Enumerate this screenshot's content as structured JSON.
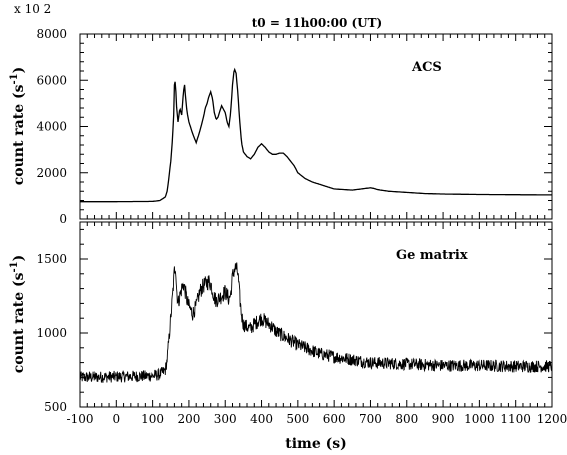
{
  "chart_data": [
    {
      "type": "line",
      "subplot": "top",
      "title": "t0 = 11h00:00 (UT)",
      "annotation": "ACS",
      "scale_label": "x 10 2",
      "ylabel": "count rate (s",
      "ylabel_sup": "-1",
      "ylabel_close": ")",
      "xlim": [
        -100,
        1200
      ],
      "ylim": [
        0,
        8000
      ],
      "yticks": [
        0,
        2000,
        4000,
        6000,
        8000
      ],
      "ytick_labels": [
        "0",
        "2000",
        "4000",
        "6000",
        "8000"
      ],
      "series": [
        {
          "x": [
            -100,
            0,
            100,
            120,
            135,
            140,
            145,
            150,
            155,
            158,
            160,
            163,
            165,
            170,
            175,
            180,
            185,
            188,
            190,
            195,
            200,
            210,
            220,
            230,
            240,
            245,
            250,
            255,
            260,
            265,
            270,
            275,
            280,
            290,
            300,
            305,
            310,
            315,
            320,
            325,
            330,
            335,
            340,
            345,
            350,
            360,
            370,
            380,
            390,
            400,
            410,
            420,
            430,
            440,
            450,
            460,
            470,
            480,
            490,
            500,
            520,
            540,
            560,
            580,
            600,
            650,
            700,
            710,
            720,
            750,
            800,
            850,
            900,
            1000,
            1100,
            1200
          ],
          "y": [
            750,
            750,
            760,
            800,
            950,
            1200,
            1800,
            2500,
            3500,
            4500,
            5800,
            6000,
            5000,
            4200,
            4800,
            4500,
            5500,
            5800,
            5400,
            4600,
            4200,
            3700,
            3300,
            3800,
            4400,
            4800,
            5000,
            5300,
            5500,
            5200,
            4600,
            4300,
            4400,
            4900,
            4600,
            4200,
            4000,
            4600,
            5800,
            6500,
            6300,
            5400,
            4200,
            3300,
            2900,
            2700,
            2600,
            2800,
            3100,
            3250,
            3100,
            2900,
            2800,
            2800,
            2850,
            2850,
            2700,
            2500,
            2300,
            2000,
            1750,
            1600,
            1500,
            1400,
            1300,
            1250,
            1350,
            1320,
            1270,
            1200,
            1150,
            1100,
            1080,
            1060,
            1050,
            1040
          ]
        }
      ]
    },
    {
      "type": "line",
      "subplot": "bottom",
      "annotation": "Ge matrix",
      "xlabel": "time (s)",
      "ylabel": "count rate (s",
      "ylabel_sup": "-1",
      "ylabel_close": ")",
      "xlim": [
        -100,
        1200
      ],
      "ylim": [
        500,
        1750
      ],
      "yticks": [
        500,
        1000,
        1500
      ],
      "ytick_labels": [
        "500",
        "1000",
        "1500"
      ],
      "xticks": [
        -100,
        0,
        100,
        200,
        300,
        400,
        500,
        600,
        700,
        800,
        900,
        1000,
        1100,
        1200
      ],
      "xtick_labels": [
        "-100",
        "0",
        "100",
        "200",
        "300",
        "400",
        "500",
        "600",
        "700",
        "800",
        "900",
        "1000",
        "1100",
        "1200"
      ],
      "series": [
        {
          "x": [
            -100,
            0,
            100,
            120,
            135,
            140,
            145,
            150,
            155,
            158,
            160,
            163,
            166,
            170,
            175,
            180,
            185,
            190,
            195,
            200,
            210,
            220,
            230,
            240,
            245,
            250,
            255,
            260,
            265,
            270,
            275,
            280,
            290,
            300,
            310,
            315,
            320,
            325,
            330,
            335,
            340,
            345,
            350,
            360,
            370,
            380,
            390,
            400,
            410,
            420,
            430,
            440,
            460,
            480,
            500,
            520,
            540,
            560,
            580,
            600,
            650,
            700,
            800,
            900,
            1000,
            1100,
            1200
          ],
          "y": [
            700,
            705,
            710,
            720,
            750,
            820,
            960,
            1100,
            1250,
            1350,
            1420,
            1460,
            1300,
            1200,
            1250,
            1300,
            1330,
            1280,
            1220,
            1180,
            1130,
            1180,
            1280,
            1320,
            1330,
            1340,
            1350,
            1330,
            1290,
            1240,
            1220,
            1230,
            1250,
            1280,
            1230,
            1260,
            1380,
            1430,
            1440,
            1400,
            1240,
            1120,
            1060,
            1040,
            1030,
            1060,
            1080,
            1100,
            1080,
            1060,
            1040,
            1010,
            980,
            950,
            920,
            900,
            880,
            860,
            850,
            840,
            820,
            800,
            790,
            780,
            780,
            775,
            775
          ]
        }
      ]
    }
  ]
}
